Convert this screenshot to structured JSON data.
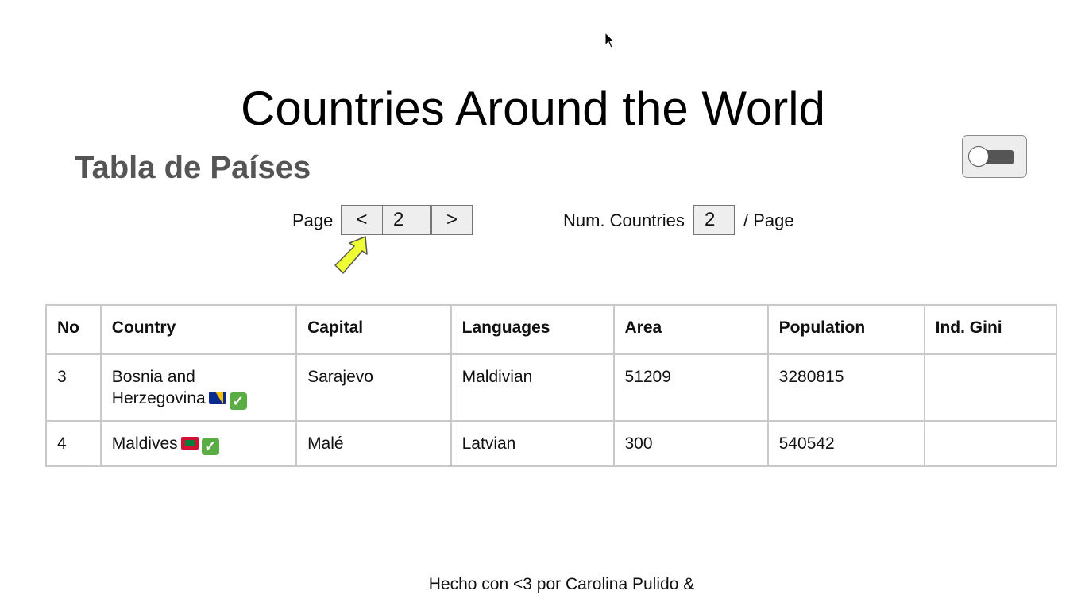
{
  "header": {
    "title": "Countries Around the World",
    "subtitle": "Tabla de Países"
  },
  "pagination": {
    "page_label": "Page",
    "prev_label": "<",
    "page_value": "2",
    "next_label": ">",
    "num_label": "Num. Countries",
    "num_value": "2",
    "per_page_label": "/ Page"
  },
  "theme_toggle": {
    "state": "off"
  },
  "table": {
    "headers": [
      "No",
      "Country",
      "Capital",
      "Languages",
      "Area",
      "Population",
      "Ind. Gini"
    ],
    "rows": [
      {
        "no": "3",
        "country": "Bosnia and Herzegovina",
        "flag_icon": "bosnia-flag-icon",
        "check_icon": "check-mark-icon",
        "capital": "Sarajevo",
        "languages": "Maldivian",
        "area": "51209",
        "population": "3280815",
        "gini": ""
      },
      {
        "no": "4",
        "country": "Maldives",
        "flag_icon": "maldives-flag-icon",
        "check_icon": "check-mark-icon",
        "capital": "Malé",
        "languages": "Latvian",
        "area": "300",
        "population": "540542",
        "gini": ""
      }
    ]
  },
  "footer": {
    "text": "Hecho con <3 por Carolina Pulido &"
  },
  "colors": {
    "subtitle": "#555555",
    "table_border": "#c9c9c9",
    "annotation_arrow": "#eeff33",
    "toggle_track": "#555555"
  }
}
